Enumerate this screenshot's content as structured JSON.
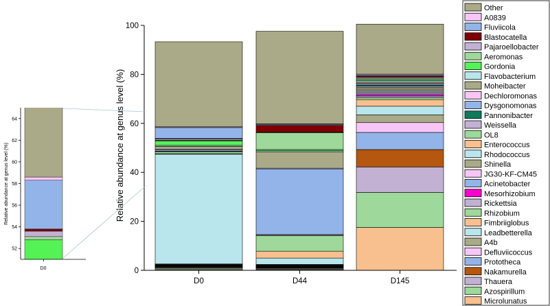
{
  "chart_data": {
    "type": "bar",
    "stacked": true,
    "ylabel": "Relative abundance at genus level (%)",
    "ylim": [
      0,
      100
    ],
    "yticks": [
      "0",
      "20",
      "40",
      "60",
      "80",
      "100"
    ],
    "categories": [
      "D0",
      "D44",
      "D145"
    ],
    "legend_position": "right",
    "series": [
      {
        "name": "Microlunatus",
        "color": "#f7c08e",
        "values": [
          0.3,
          0.3,
          17.5
        ]
      },
      {
        "name": "Azospirillum",
        "color": "#9ed89a",
        "values": [
          0.5,
          0.3,
          14.3
        ]
      },
      {
        "name": "Thauera",
        "color": "#c3b1d4",
        "values": [
          0.3,
          0.3,
          10.4
        ]
      },
      {
        "name": "Nakamurella",
        "color": "#b5570e",
        "values": [
          0.1,
          0.1,
          7.1
        ]
      },
      {
        "name": "Prototheca",
        "color": "#93b4e8",
        "values": [
          0.1,
          0.1,
          7.0
        ]
      },
      {
        "name": "Defluviicoccus",
        "color": "#f7c6f6",
        "values": [
          0.1,
          0.1,
          4.0
        ]
      },
      {
        "name": "A4b",
        "color": "#aaaa88",
        "values": [
          0.2,
          0.1,
          3.2
        ]
      },
      {
        "name": "Leadbetterella",
        "color": "#b8e6ec",
        "values": [
          0.2,
          0.2,
          3.5
        ]
      },
      {
        "name": "Fimbriiglobus",
        "color": "#f7c08e",
        "values": [
          0.1,
          0.1,
          2.7
        ]
      },
      {
        "name": "Rhizobium",
        "color": "#9ed89a",
        "values": [
          0.1,
          0.2,
          0.8
        ]
      },
      {
        "name": "Rickettsia",
        "color": "#c3b1d4",
        "values": [
          0.1,
          0.1,
          0.6
        ]
      },
      {
        "name": "Mesorhizobium",
        "color": "#ff00d0",
        "values": [
          0.1,
          0.1,
          0.6
        ]
      },
      {
        "name": "Acinetobacter",
        "color": "#93b4e8",
        "values": [
          0.1,
          0.2,
          0.5
        ]
      },
      {
        "name": "JG30-KF-CM45",
        "color": "#f7c6f6",
        "values": [
          0.1,
          0.1,
          0.5
        ]
      },
      {
        "name": "Shinella",
        "color": "#aaaa88",
        "values": [
          0.2,
          0.1,
          0.5
        ]
      },
      {
        "name": "Rhodococcus",
        "color": "#b8e6ec",
        "values": [
          44.8,
          2.6,
          0.5
        ]
      },
      {
        "name": "Enterococcus",
        "color": "#f7c08e",
        "values": [
          0.2,
          2.8,
          0.5
        ]
      },
      {
        "name": "OL8",
        "color": "#9ed89a",
        "values": [
          0.8,
          6.4,
          0.5
        ]
      },
      {
        "name": "Weissella",
        "color": "#c3b1d4",
        "values": [
          0.2,
          0.3,
          0.5
        ]
      },
      {
        "name": "Pannonibacter",
        "color": "#0e7a5c",
        "values": [
          0.1,
          0.1,
          0.4
        ]
      },
      {
        "name": "Dysgonomonas",
        "color": "#93b4e8",
        "values": [
          0.6,
          26.8,
          0.4
        ]
      },
      {
        "name": "Dechloromonas",
        "color": "#f7c6f6",
        "values": [
          0.1,
          0.3,
          0.4
        ]
      },
      {
        "name": "Moheibacter",
        "color": "#aaaa88",
        "values": [
          1.2,
          6.7,
          0.5
        ]
      },
      {
        "name": "Flavobacterium",
        "color": "#b8e6ec",
        "values": [
          0.4,
          0.4,
          0.5
        ]
      },
      {
        "name": "Gordonia",
        "color": "#55f255",
        "values": [
          1.8,
          0.5,
          0.5
        ]
      },
      {
        "name": "Aeromonas",
        "color": "#9ed89a",
        "values": [
          0.3,
          6.9,
          0.5
        ]
      },
      {
        "name": "Pajaroellobacter",
        "color": "#c3b1d4",
        "values": [
          0.5,
          0.2,
          0.4
        ]
      },
      {
        "name": "Blastocatella",
        "color": "#800000",
        "values": [
          0.2,
          2.8,
          0.5
        ]
      },
      {
        "name": "Fluviicola",
        "color": "#93b4e8",
        "values": [
          4.5,
          0.4,
          0.4
        ]
      },
      {
        "name": "A0839",
        "color": "#f7c6f6",
        "values": [
          0.3,
          0.2,
          0.4
        ]
      },
      {
        "name": "Other",
        "color": "#aaaa88",
        "values": [
          34.7,
          37.8,
          20.4
        ]
      }
    ],
    "inset": {
      "category": "D0",
      "ylabel": "Relative abundance at genus level (%)",
      "ylim": [
        51,
        65
      ],
      "yticks": [
        "52",
        "54",
        "56",
        "58",
        "60",
        "62",
        "64"
      ]
    }
  }
}
